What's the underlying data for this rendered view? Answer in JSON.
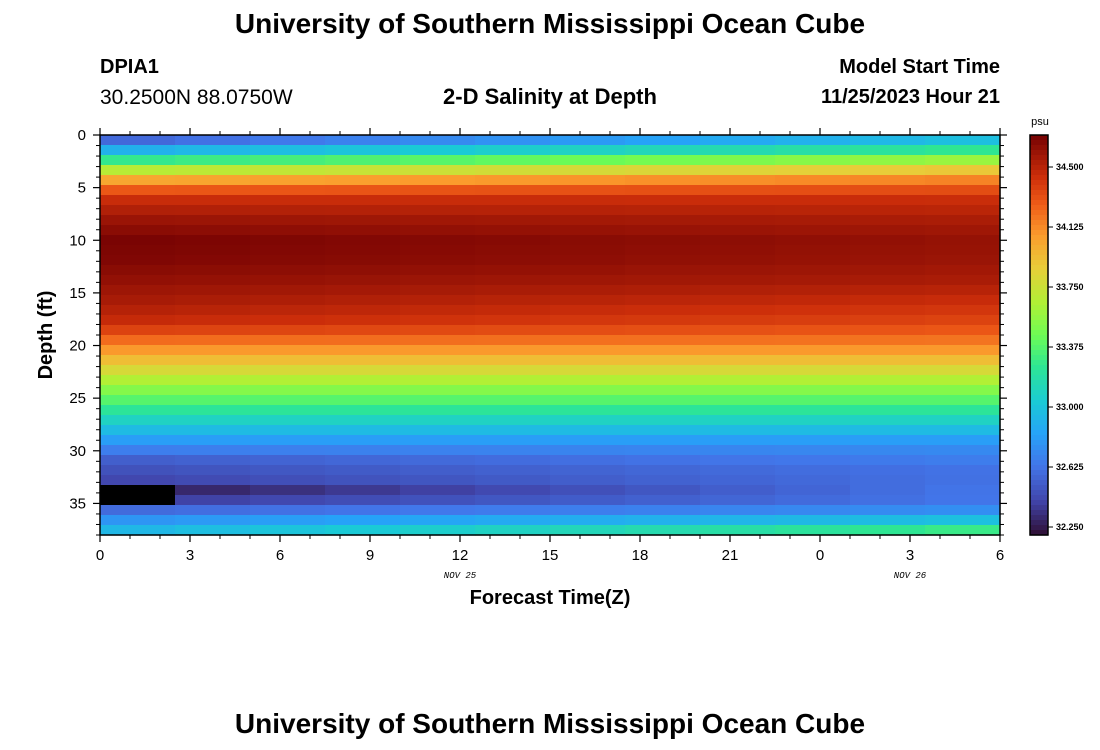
{
  "header": {
    "title": "University of Southern Mississippi Ocean Cube",
    "station_id": "DPIA1",
    "coordinates": "30.2500N  88.0750W",
    "subtitle": "2-D Salinity at Depth",
    "model_start_label": "Model Start Time",
    "model_start_value": "11/25/2023 Hour 21"
  },
  "footer": {
    "title": "University of Southern Mississippi Ocean Cube"
  },
  "chart_data": {
    "type": "heatmap",
    "title": "2-D Salinity at Depth",
    "xlabel": "Forecast Time(Z)",
    "ylabel": "Depth (ft)",
    "x_tick_labels": [
      "0",
      "3",
      "6",
      "9",
      "12",
      "15",
      "18",
      "21",
      "0",
      "3",
      "6"
    ],
    "x_date_labels": [
      {
        "label": "NOV 25",
        "after_tick": 4
      },
      {
        "label": "NOV 26",
        "after_tick": 9
      }
    ],
    "xlim": [
      0,
      30
    ],
    "ylim": [
      0,
      38
    ],
    "y_ticks": [
      0,
      5,
      10,
      15,
      20,
      25,
      30,
      35
    ],
    "y_tick_labels": [
      "0",
      "5",
      "10",
      "15",
      "20",
      "25",
      "30",
      "35"
    ],
    "colorbar": {
      "unit": "psu",
      "vmin": 32.2,
      "vmax": 34.7,
      "tick_values": [
        34.5,
        34.125,
        33.75,
        33.375,
        33.0,
        32.625,
        32.25
      ],
      "tick_labels": [
        "34.500",
        "34.125",
        "33.750",
        "33.375",
        "33.000",
        "32.625",
        "32.250"
      ]
    },
    "time_columns": 12,
    "depth_rows": 40,
    "profile_depths_ft": [
      0,
      1,
      2,
      3,
      4,
      5,
      6,
      8,
      10,
      12,
      14,
      16,
      18,
      19,
      20,
      21,
      22,
      23,
      24,
      25,
      26,
      27,
      28,
      29,
      30,
      31,
      32,
      33,
      34,
      35,
      36,
      37,
      38
    ],
    "profile_start": [
      32.4,
      32.75,
      33.1,
      33.55,
      33.95,
      34.25,
      34.45,
      34.6,
      34.7,
      34.68,
      34.62,
      34.55,
      34.45,
      34.3,
      34.15,
      34.0,
      33.85,
      33.7,
      33.55,
      33.4,
      33.25,
      33.1,
      32.95,
      32.8,
      32.65,
      32.5,
      32.45,
      32.4,
      32.2,
      32.45,
      32.65,
      32.85,
      33.0
    ],
    "profile_end": [
      32.85,
      33.1,
      33.45,
      33.8,
      34.1,
      34.3,
      34.45,
      34.55,
      34.62,
      34.6,
      34.55,
      34.45,
      34.35,
      34.25,
      34.15,
      34.0,
      33.85,
      33.7,
      33.55,
      33.4,
      33.25,
      33.1,
      32.95,
      32.8,
      32.7,
      32.65,
      32.6,
      32.6,
      32.62,
      32.62,
      32.8,
      33.1,
      33.45
    ]
  }
}
